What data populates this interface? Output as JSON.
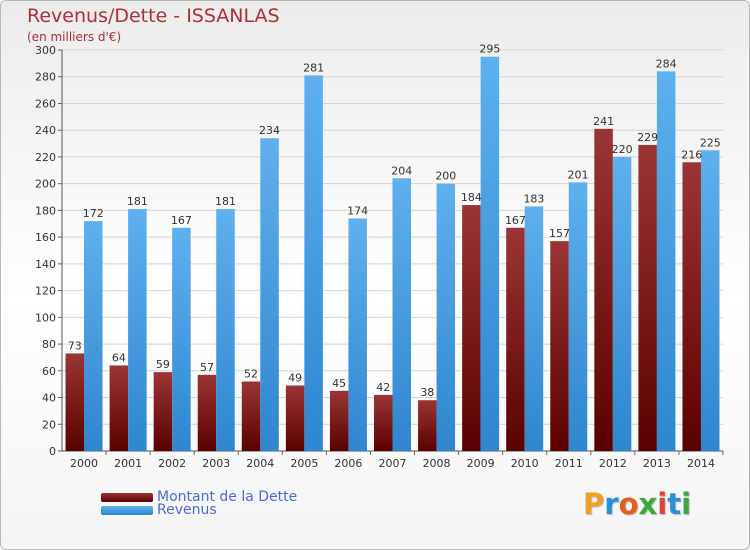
{
  "title": "Revenus/Dette - ISSANLAS",
  "subtitle": "(en milliers d'€)",
  "colors": {
    "dette_dark": "#5a0000",
    "dette_light": "#9b3535",
    "revenus_dark": "#2f86cf",
    "revenus_light": "#5eb0ee",
    "title": "#b03030",
    "legend_text": "#4a6ad6"
  },
  "logo": {
    "text": "Proxiti",
    "letter_colors": [
      "#f0a020",
      "#2a8fd8",
      "#e06020",
      "#3aa83a",
      "#e04040",
      "#2a8fd8",
      "#3aa83a"
    ]
  },
  "chart_data": {
    "type": "bar",
    "categories": [
      "2000",
      "2001",
      "2002",
      "2003",
      "2004",
      "2005",
      "2006",
      "2007",
      "2008",
      "2009",
      "2010",
      "2011",
      "2012",
      "2013",
      "2014"
    ],
    "series": [
      {
        "name": "Montant de la Dette",
        "values": [
          73,
          64,
          59,
          57,
          52,
          49,
          45,
          42,
          38,
          184,
          167,
          157,
          241,
          229,
          216
        ]
      },
      {
        "name": "Revenus",
        "values": [
          172,
          181,
          167,
          181,
          234,
          281,
          174,
          204,
          200,
          295,
          183,
          201,
          220,
          284,
          225
        ]
      }
    ],
    "ylim": [
      0,
      300
    ],
    "yticks": [
      0,
      20,
      40,
      60,
      80,
      100,
      120,
      140,
      160,
      180,
      200,
      220,
      240,
      260,
      280,
      300
    ],
    "grid": true,
    "legend_position": "bottom-left"
  }
}
